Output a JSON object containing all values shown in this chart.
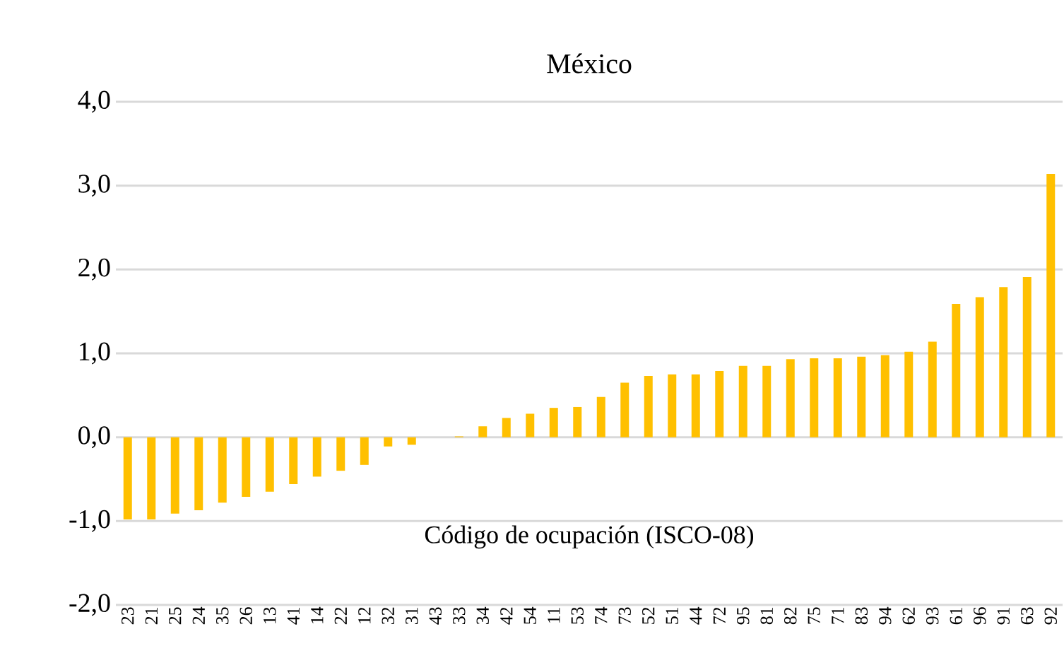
{
  "chart_data": {
    "type": "bar",
    "title": "México",
    "xlabel": "Código de ocupación (ISCO-08)",
    "categories": [
      "23",
      "21",
      "25",
      "24",
      "35",
      "26",
      "13",
      "41",
      "14",
      "22",
      "12",
      "32",
      "31",
      "43",
      "33",
      "34",
      "42",
      "54",
      "11",
      "53",
      "74",
      "73",
      "52",
      "51",
      "44",
      "72",
      "95",
      "81",
      "82",
      "75",
      "71",
      "83",
      "94",
      "62",
      "93",
      "61",
      "96",
      "91",
      "63",
      "92"
    ],
    "values": [
      -0.98,
      -0.98,
      -0.91,
      -0.87,
      -0.78,
      -0.71,
      -0.65,
      -0.56,
      -0.47,
      -0.4,
      -0.33,
      -0.11,
      -0.09,
      0.0,
      0.01,
      0.13,
      0.23,
      0.28,
      0.35,
      0.36,
      0.48,
      0.65,
      0.73,
      0.75,
      0.75,
      0.79,
      0.85,
      0.85,
      0.93,
      0.94,
      0.94,
      0.96,
      0.98,
      1.02,
      1.14,
      1.59,
      1.67,
      1.79,
      1.91,
      3.14
    ],
    "color": "#ffc000",
    "ylim": [
      -2,
      4
    ],
    "yticks": [
      {
        "value": -2,
        "label": "-2,0"
      },
      {
        "value": -1,
        "label": "-1,0"
      },
      {
        "value": 0,
        "label": "0,0"
      },
      {
        "value": 1,
        "label": "1,0"
      },
      {
        "value": 2,
        "label": "2,0"
      },
      {
        "value": 3,
        "label": "3,0"
      },
      {
        "value": 4,
        "label": "4,0"
      }
    ],
    "grid": "y"
  }
}
